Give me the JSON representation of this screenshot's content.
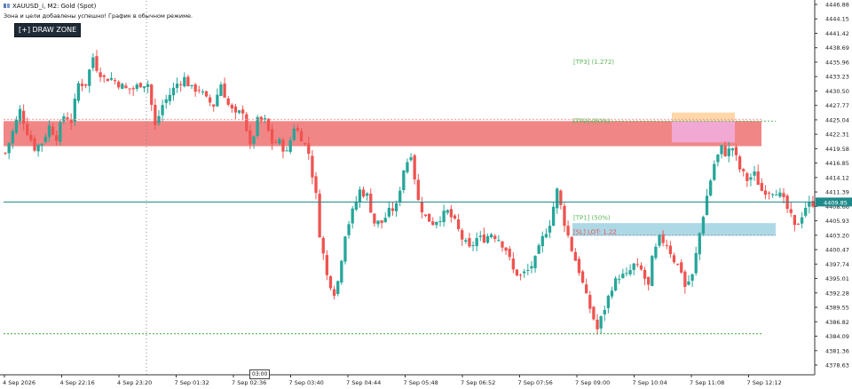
{
  "header": {
    "symbol_line": "XAUUSD_i, M2:  Gold (Spot)",
    "status_message": "Зона и цели добавлены успешно! График в обычном режиме."
  },
  "toolbar": {
    "draw_zone_label": "[+] DRAW ZONE"
  },
  "overlays": {
    "tp3_label": "[TP3] (1.272)",
    "tp2_label": "[TP2] (50%)",
    "tp1_label": "[TP1] (50%)",
    "sl_label": "[SL] LOT: 1.22",
    "current_price_label": "4409.85",
    "date_marker_label": "03:00"
  },
  "colors": {
    "bull": "#26a69a",
    "bear": "#ef5350",
    "resistance_zone": "#f08080",
    "entry_zone": "#add8e6",
    "tp_orange_zone": "#ffd7a8",
    "tp_pink_zone": "#f1a8d2",
    "price_line": "#1f8a8a",
    "tp_text": "#5cb85c",
    "sl_text": "#e05555"
  },
  "chart_data": {
    "type": "candlestick",
    "y_axis_ticks": [
      "4446.88",
      "4444.15",
      "4441.42",
      "4438.69",
      "4435.96",
      "4433.23",
      "4430.50",
      "4427.77",
      "4425.04",
      "4422.31",
      "4419.58",
      "4416.85",
      "4414.12",
      "4411.39",
      "4408.66",
      "4405.93",
      "4403.20",
      "4400.47",
      "4397.74",
      "4395.01",
      "4392.28",
      "4389.55",
      "4386.82",
      "4384.09",
      "4381.36",
      "4378.63"
    ],
    "x_axis_ticks": [
      "4 Sep 2026",
      "4 Sep 22:16",
      "4 Sep 23:20",
      "7 Sep 01:32",
      "7 Sep 02:36",
      "7 Sep 03:40",
      "7 Sep 04:44",
      "7 Sep 05:48",
      "7 Sep 06:52",
      "7 Sep 07:56",
      "7 Sep 09:00",
      "7 Sep 10:04",
      "7 Sep 11:08",
      "7 Sep 12:12"
    ],
    "ylim": [
      4377.5,
      4447.5
    ],
    "current_price": 4409.85,
    "resistance_zone": [
      4420.3,
      4425.0
    ],
    "entry_zone": [
      4403.5,
      4405.9
    ],
    "tp_orange_zone": [
      4424.6,
      4426.6
    ],
    "tp_pink_zone": [
      4421.0,
      4425.0
    ],
    "tp3_level": 4436.0,
    "tp2_level": 4425.0,
    "tp1_level": 4407.0,
    "low_level": 4385.2,
    "close_path": [
      [
        0,
        4419
      ],
      [
        2,
        4423
      ],
      [
        4,
        4427
      ],
      [
        6,
        4423
      ],
      [
        8,
        4420
      ],
      [
        10,
        4421
      ],
      [
        12,
        4424
      ],
      [
        14,
        4422
      ],
      [
        16,
        4426
      ],
      [
        18,
        4425
      ],
      [
        20,
        4432
      ],
      [
        22,
        4432
      ],
      [
        24,
        4437
      ],
      [
        25,
        4435
      ],
      [
        27,
        4433
      ],
      [
        29,
        4433
      ],
      [
        31,
        4432
      ],
      [
        33,
        4431
      ],
      [
        35,
        4431
      ],
      [
        37,
        4432
      ],
      [
        39,
        4432
      ],
      [
        41,
        4424
      ],
      [
        43,
        4428
      ],
      [
        45,
        4430
      ],
      [
        47,
        4432
      ],
      [
        49,
        4433
      ],
      [
        51,
        4431
      ],
      [
        53,
        4431
      ],
      [
        55,
        4429
      ],
      [
        57,
        4428
      ],
      [
        59,
        4432
      ],
      [
        61,
        4428
      ],
      [
        63,
        4426
      ],
      [
        65,
        4427
      ],
      [
        67,
        4420
      ],
      [
        69,
        4425
      ],
      [
        71,
        4425
      ],
      [
        73,
        4421
      ],
      [
        75,
        4421
      ],
      [
        77,
        4419
      ],
      [
        79,
        4424
      ],
      [
        81,
        4422
      ],
      [
        83,
        4419
      ],
      [
        85,
        4411
      ],
      [
        86,
        4404
      ],
      [
        88,
        4396
      ],
      [
        90,
        4393
      ],
      [
        91,
        4395
      ],
      [
        93,
        4404
      ],
      [
        95,
        4408
      ],
      [
        97,
        4412
      ],
      [
        99,
        4411
      ],
      [
        101,
        4406
      ],
      [
        103,
        4406
      ],
      [
        105,
        4408
      ],
      [
        107,
        4409
      ],
      [
        109,
        4416
      ],
      [
        111,
        4419
      ],
      [
        113,
        4410
      ],
      [
        115,
        4407
      ],
      [
        117,
        4406
      ],
      [
        119,
        4407
      ],
      [
        121,
        4408
      ],
      [
        123,
        4406
      ],
      [
        125,
        4403
      ],
      [
        127,
        4401
      ],
      [
        129,
        4403
      ],
      [
        131,
        4403
      ],
      [
        133,
        4404
      ],
      [
        135,
        4403
      ],
      [
        137,
        4401
      ],
      [
        139,
        4397
      ],
      [
        141,
        4396
      ],
      [
        143,
        4397
      ],
      [
        145,
        4399
      ],
      [
        147,
        4403
      ],
      [
        149,
        4406
      ],
      [
        151,
        4412
      ],
      [
        153,
        4406
      ],
      [
        155,
        4401
      ],
      [
        157,
        4397
      ],
      [
        159,
        4392
      ],
      [
        161,
        4388
      ],
      [
        162,
        4386
      ],
      [
        164,
        4390
      ],
      [
        166,
        4394
      ],
      [
        168,
        4396
      ],
      [
        170,
        4396
      ],
      [
        172,
        4398
      ],
      [
        174,
        4397
      ],
      [
        176,
        4394
      ],
      [
        177,
        4399
      ],
      [
        179,
        4403
      ],
      [
        181,
        4402
      ],
      [
        183,
        4399
      ],
      [
        185,
        4397
      ],
      [
        186,
        4394
      ],
      [
        188,
        4396
      ],
      [
        190,
        4404
      ],
      [
        192,
        4411
      ],
      [
        194,
        4417
      ],
      [
        196,
        4420
      ],
      [
        197,
        4419
      ],
      [
        199,
        4420
      ],
      [
        201,
        4416
      ],
      [
        203,
        4414
      ],
      [
        205,
        4415
      ],
      [
        207,
        4412
      ],
      [
        209,
        4412
      ],
      [
        211,
        4412
      ],
      [
        213,
        4410
      ],
      [
        215,
        4407
      ],
      [
        216,
        4405
      ],
      [
        217,
        4406
      ],
      [
        219,
        4409
      ],
      [
        222,
        4410
      ]
    ]
  }
}
